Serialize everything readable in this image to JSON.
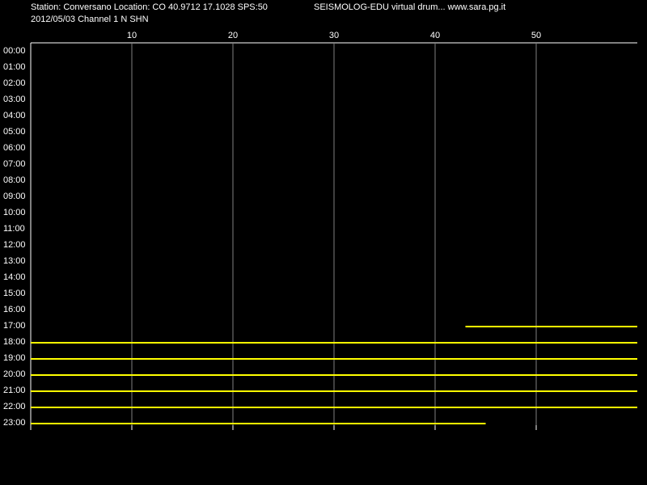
{
  "chart_data": {
    "type": "drum",
    "title": "Station: Conversano Location: CO 40.9712 17.1028 SPS:50",
    "subtitle": "2012/05/03  Channel 1 N SHN",
    "annotation": "SEISMOLOG-EDU virtual drum... www.sara.pg.it",
    "categories": [
      "00:00",
      "01:00",
      "02:00",
      "03:00",
      "04:00",
      "05:00",
      "06:00",
      "07:00",
      "08:00",
      "09:00",
      "10:00",
      "11:00",
      "12:00",
      "13:00",
      "14:00",
      "15:00",
      "16:00",
      "17:00",
      "18:00",
      "19:00",
      "20:00",
      "21:00",
      "22:00",
      "23:00"
    ],
    "trace_start": [
      null,
      null,
      null,
      null,
      null,
      null,
      null,
      null,
      null,
      null,
      null,
      null,
      null,
      null,
      null,
      null,
      null,
      43,
      0,
      0,
      0,
      0,
      0,
      0
    ],
    "trace_end": [
      null,
      null,
      null,
      null,
      null,
      null,
      null,
      null,
      null,
      null,
      null,
      null,
      null,
      null,
      null,
      null,
      null,
      60,
      60,
      60,
      60,
      60,
      60,
      45
    ],
    "color": "#ffff00",
    "xlim": [
      0,
      60
    ],
    "xticks": [
      10,
      20,
      30,
      40,
      50
    ],
    "grid": true
  }
}
